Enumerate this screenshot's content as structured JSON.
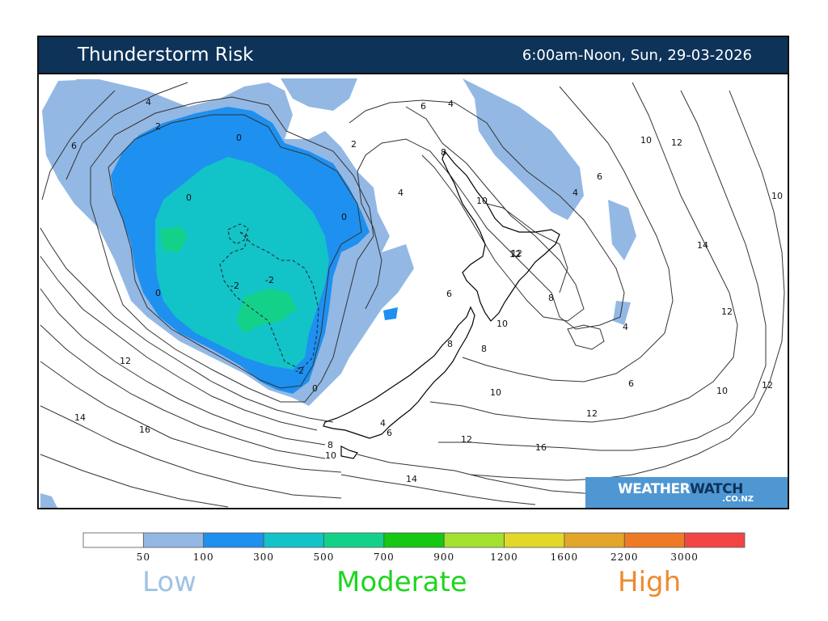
{
  "header": {
    "title": "Thunderstorm Risk",
    "valid_time": "6:00am-Noon, Sun, 29-03-2026",
    "background_color": "#0d3359"
  },
  "logo": {
    "brand_part1": "WEATHER",
    "brand_part2": "WATCH",
    "domain": ".CO.NZ"
  },
  "legend": {
    "colors": [
      "#ffffff",
      "#93b8e4",
      "#1e90f0",
      "#12c3c8",
      "#14d18a",
      "#14c814",
      "#a3e030",
      "#e3d82a",
      "#e3a52a",
      "#ee7a26",
      "#f24545"
    ],
    "tick_labels": [
      "50",
      "100",
      "300",
      "500",
      "700",
      "900",
      "1200",
      "1600",
      "2200",
      "3000"
    ],
    "categories": [
      {
        "label": "Low",
        "color": "#9fc3e3"
      },
      {
        "label": "Moderate",
        "color": "#1ed51e"
      },
      {
        "label": "High",
        "color": "#ee8a30"
      }
    ]
  },
  "map": {
    "region": "New Zealand",
    "contour_labels": [
      "4",
      "2",
      "6",
      "0",
      "0",
      "0",
      "-2",
      "-2",
      "0",
      "-2",
      "0",
      "6",
      "4",
      "2",
      "4",
      "8",
      "10",
      "12",
      "8",
      "6",
      "8",
      "10",
      "6",
      "4",
      "8",
      "10",
      "12",
      "6",
      "4",
      "10",
      "12",
      "10",
      "12",
      "14",
      "12",
      "10",
      "12",
      "16",
      "14",
      "16",
      "14",
      "12",
      "12",
      "10",
      "8",
      "6",
      "4",
      "16"
    ]
  }
}
